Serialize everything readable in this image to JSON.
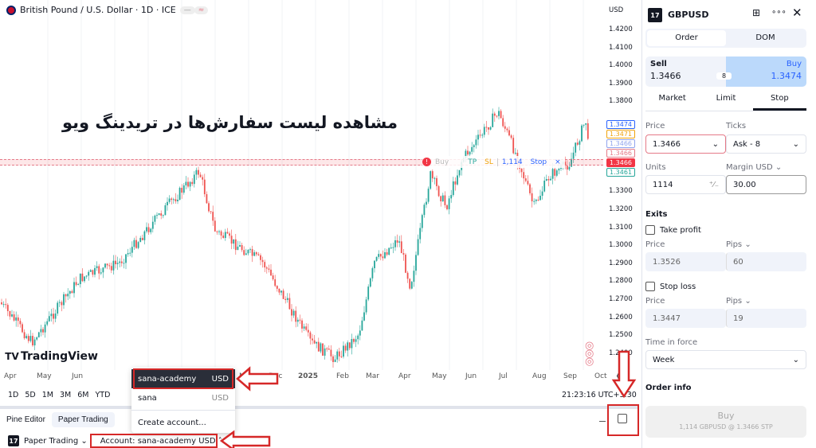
{
  "header": {
    "title": "British Pound / U.S. Dollar · 1D · ICE",
    "pill1": "—",
    "pill2": "≈",
    "currency": "USD"
  },
  "overlay_text": "مشاهده لیست سفارش‌ها در تریدینگ ویو",
  "price_axis": {
    "ticks": [
      "1.4200",
      "1.4100",
      "1.4000",
      "1.3900",
      "1.3800",
      "1.3300",
      "1.3200",
      "1.3100",
      "1.3000",
      "1.2900",
      "1.2800",
      "1.2700",
      "1.2600",
      "1.2500",
      "1.2400"
    ],
    "labels": [
      {
        "v": "1.3474",
        "c": "#2962ff"
      },
      {
        "v": "1.3471",
        "c": "#f0a30a"
      },
      {
        "v": "1.3466",
        "c": "#90a4ee"
      },
      {
        "v": "1.3466",
        "c": "#e57a88"
      },
      {
        "v": "1.3466",
        "c": "#f23645",
        "fill": true
      },
      {
        "v": "1.3461",
        "c": "#26a69a"
      }
    ]
  },
  "order_widget": {
    "side": "Buy",
    "tp": "TP",
    "sl": "SL",
    "qty": "1,114",
    "type": "Stop",
    "close": "×"
  },
  "time_axis": [
    "Apr",
    "May",
    "Jun",
    "Nov",
    "Dec",
    "2025",
    "Feb",
    "Mar",
    "Apr",
    "May",
    "Jun",
    "Jul",
    "Aug",
    "Sep",
    "Oct"
  ],
  "ranges": [
    "1D",
    "5D",
    "1M",
    "3M",
    "6M",
    "YTD"
  ],
  "clock": "21:23:16 UTC+3:30",
  "logo": "TradingView",
  "bottom_tabs": [
    "Pine Editor",
    "Paper Trading"
  ],
  "bottom_toolbar": {
    "broker": "Paper Trading",
    "account": "Account: sana-academy USD"
  },
  "account_dropdown": [
    {
      "name": "sana-academy",
      "cur": "USD",
      "selected": true
    },
    {
      "name": "sana",
      "cur": "USD"
    }
  ],
  "create_account": "Create account...",
  "colors": {
    "up": "#26a69a",
    "down": "#ef5350",
    "accent": "#2962ff",
    "annotation": "#d62828"
  },
  "panel": {
    "symbol": "GBPUSD",
    "tabs": [
      "Order",
      "DOM"
    ],
    "sell_label": "Sell",
    "sell_price": "1.3466",
    "spread": "8",
    "buy_label": "Buy",
    "buy_price": "1.3474",
    "order_types": [
      "Market",
      "Limit",
      "Stop"
    ],
    "selected_type": "Stop",
    "price_label": "Price",
    "price_value": "1.3466",
    "ticks_label": "Ticks",
    "ticks_value": "Ask - 8",
    "units_label": "Units",
    "units_value": "1114",
    "margin_label": "Margin USD",
    "margin_value": "30.00",
    "exits": "Exits",
    "take_profit": "Take profit",
    "tp_price": "1.3526",
    "tp_pips": "60",
    "stop_loss": "Stop loss",
    "sl_price": "1.3447",
    "sl_pips": "19",
    "pips_label": "Pips",
    "tif_label": "Time in force",
    "tif_value": "Week",
    "order_info": "Order info",
    "buy_button": "Buy",
    "buy_sub": "1,114 GBPUSD @ 1.3466 STP"
  }
}
